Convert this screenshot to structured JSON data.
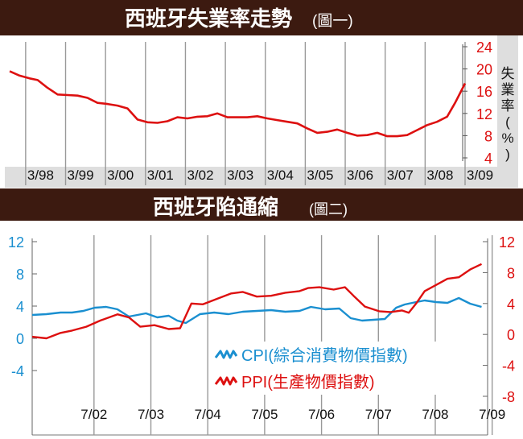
{
  "charts": {
    "top": {
      "title": "西班牙失業率走勢",
      "figure_label": "(圖一)",
      "ylabel": "失業率(%)",
      "ylabel_chars": [
        "失",
        "業",
        "率",
        "(",
        "%",
        ")"
      ]
    },
    "bottom": {
      "title": "西班牙陷通縮",
      "figure_label": "(圖二)",
      "legend": [
        {
          "key": "cpi",
          "text": "CPI(綜合消費物價指數)"
        },
        {
          "key": "ppi",
          "text": "PPI(生產物價指數)"
        }
      ]
    }
  },
  "colors": {
    "banner": "#3c1a10",
    "banner_text": "#ffffff",
    "unemployment": "#dd1010",
    "cpi": "#1a8fd0",
    "ppi": "#dd1010",
    "grid": "#999999",
    "axis_band": "#dedede"
  },
  "chart_data": [
    {
      "type": "line",
      "title": "西班牙失業率走勢",
      "ylabel": "失業率(%)",
      "y_axis_side": "right",
      "ylim": [
        4,
        24
      ],
      "yticks": [
        4,
        8,
        12,
        16,
        20,
        24
      ],
      "x_range": [
        1997.85,
        2009.25
      ],
      "xtick_positions": [
        1998.25,
        1999.25,
        2000.25,
        2001.25,
        2002.25,
        2003.25,
        2004.25,
        2005.25,
        2006.25,
        2007.25,
        2008.25,
        2009.25
      ],
      "xtick_labels": [
        "3/98",
        "3/99",
        "3/00",
        "3/01",
        "3/02",
        "3/03",
        "3/04",
        "3/05",
        "3/06",
        "3/07",
        "3/08",
        "3/09"
      ],
      "grid": "vertical",
      "series": [
        {
          "color": "#dd1010",
          "x": [
            1997.85,
            1998.1,
            1998.35,
            1998.55,
            1998.8,
            1999.05,
            1999.3,
            1999.55,
            1999.8,
            2000.05,
            2000.3,
            2000.55,
            2000.8,
            2001.05,
            2001.3,
            2001.55,
            2001.8,
            2002.05,
            2002.3,
            2002.55,
            2002.8,
            2003.05,
            2003.3,
            2003.55,
            2003.8,
            2004.05,
            2004.3,
            2004.55,
            2004.8,
            2005.05,
            2005.3,
            2005.55,
            2005.8,
            2006.05,
            2006.3,
            2006.55,
            2006.8,
            2007.05,
            2007.3,
            2007.55,
            2007.8,
            2008.05,
            2008.3,
            2008.55,
            2008.8,
            2009.0,
            2009.25
          ],
          "y": [
            19.6,
            18.8,
            18.3,
            18.0,
            16.6,
            15.4,
            15.3,
            15.2,
            14.8,
            13.9,
            13.7,
            13.4,
            12.9,
            10.9,
            10.4,
            10.3,
            10.6,
            11.3,
            11.1,
            11.4,
            11.5,
            12.0,
            11.3,
            11.3,
            11.3,
            11.5,
            11.1,
            10.8,
            10.5,
            10.2,
            9.3,
            8.5,
            8.7,
            9.1,
            8.5,
            8.0,
            8.1,
            8.5,
            7.9,
            7.9,
            8.1,
            9.0,
            9.9,
            10.5,
            11.4,
            13.9,
            17.4
          ]
        }
      ]
    },
    {
      "type": "line",
      "title": "西班牙陷通縮",
      "x_range": [
        2001.3,
        2009.25
      ],
      "xtick_positions": [
        2002.5,
        2003.5,
        2004.5,
        2005.5,
        2006.5,
        2007.5,
        2008.5,
        2009.5
      ],
      "xtick_labels": [
        "7/02",
        "7/03",
        "7/04",
        "7/05",
        "7/06",
        "7/07",
        "7/08",
        "7/09"
      ],
      "y_left": {
        "ylim": [
          -7,
          12
        ],
        "yticks": [
          12,
          8,
          4,
          0,
          -4
        ],
        "color": "#1a8fd0"
      },
      "y_right": {
        "ylim": [
          -8,
          12
        ],
        "yticks": [
          12,
          8,
          4,
          0,
          -4,
          -8
        ],
        "color": "#dd1010"
      },
      "grid": "vertical",
      "legend_position": "bottom-center",
      "series": [
        {
          "name": "CPI(綜合消費物價指數)",
          "axis": "left",
          "color": "#1a8fd0",
          "x": [
            2001.3,
            2001.55,
            2001.8,
            2002.0,
            2002.2,
            2002.4,
            2002.6,
            2002.8,
            2003.0,
            2003.15,
            2003.3,
            2003.5,
            2003.7,
            2003.85,
            2004.0,
            2004.25,
            2004.5,
            2004.75,
            2005.0,
            2005.25,
            2005.5,
            2005.75,
            2006.0,
            2006.2,
            2006.45,
            2006.7,
            2006.9,
            2007.1,
            2007.3,
            2007.5,
            2007.7,
            2007.85,
            2008.05,
            2008.2,
            2008.4,
            2008.6,
            2008.8,
            2009.0,
            2009.2
          ],
          "y": [
            2.9,
            3.0,
            3.2,
            3.2,
            3.4,
            3.8,
            3.9,
            3.6,
            2.7,
            2.9,
            3.1,
            2.6,
            2.8,
            2.2,
            1.9,
            3.0,
            3.2,
            3.0,
            3.3,
            3.4,
            3.5,
            3.3,
            3.4,
            3.9,
            3.6,
            3.7,
            2.5,
            2.2,
            2.3,
            2.4,
            3.8,
            4.2,
            4.5,
            4.7,
            4.5,
            4.4,
            5.0,
            4.3,
            3.9
          ]
        },
        {
          "name": "PPI(生產物價指數)",
          "axis": "right",
          "color": "#dd1010",
          "x": [
            2001.3,
            2001.55,
            2001.8,
            2002.0,
            2002.25,
            2002.5,
            2002.8,
            2003.0,
            2003.2,
            2003.45,
            2003.7,
            2003.9,
            2004.1,
            2004.3,
            2004.55,
            2004.8,
            2005.0,
            2005.25,
            2005.5,
            2005.75,
            2006.0,
            2006.15,
            2006.35,
            2006.6,
            2006.8,
            2006.95,
            2007.15,
            2007.4,
            2007.6,
            2007.8,
            2007.92,
            2008.05,
            2008.2,
            2008.4,
            2008.6,
            2008.8,
            2009.0,
            2009.2
          ],
          "y": [
            -0.3,
            -0.5,
            0.2,
            0.5,
            1.0,
            1.8,
            2.6,
            2.2,
            1.0,
            1.2,
            0.7,
            0.8,
            4.0,
            3.9,
            4.6,
            5.3,
            5.5,
            4.9,
            5.0,
            5.4,
            5.6,
            6.0,
            6.1,
            5.8,
            6.1,
            5.0,
            3.6,
            3.0,
            2.9,
            3.1,
            2.8,
            4.0,
            5.6,
            6.4,
            7.2,
            7.4,
            8.4,
            9.1
          ]
        }
      ]
    }
  ]
}
